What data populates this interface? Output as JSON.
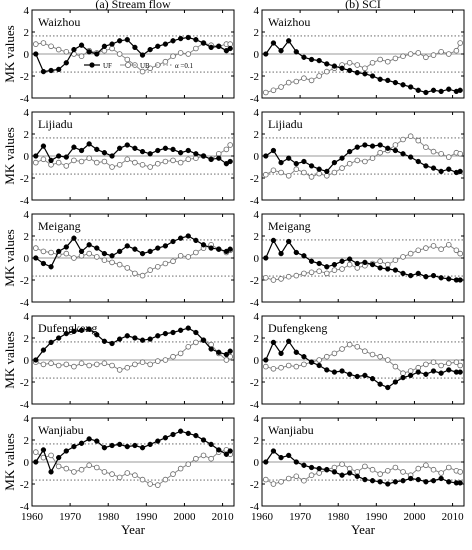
{
  "columns": [
    {
      "title": "(a) Stream flow"
    },
    {
      "title": "(b) SCI"
    }
  ],
  "stations": [
    "Waizhou",
    "Lijiadu",
    "Meigang",
    "Dufengkeng",
    "Wanjiabu"
  ],
  "ylabel": "MK values",
  "xlabel": "Year",
  "xticks": [
    1960,
    1970,
    1980,
    1990,
    2000,
    2010
  ],
  "yticks": [
    -4,
    -2,
    0,
    2,
    4
  ],
  "legend": {
    "uf": "UF",
    "ub": "UB",
    "alpha": "α =0.1"
  },
  "chart_data": {
    "type": "line",
    "xlim": [
      1960,
      2013
    ],
    "ylim": [
      -4,
      4
    ],
    "significance_lines": [
      -1.64,
      1.64
    ],
    "zero_line": 0,
    "x": [
      1961,
      1963,
      1965,
      1967,
      1969,
      1971,
      1973,
      1975,
      1977,
      1979,
      1981,
      1983,
      1985,
      1987,
      1989,
      1991,
      1993,
      1995,
      1997,
      1999,
      2001,
      2003,
      2005,
      2007,
      2009,
      2011,
      2012
    ],
    "panels": [
      {
        "station": "Waizhou",
        "variable": "Stream flow",
        "series": [
          {
            "name": "UF",
            "values": [
              0.0,
              -1.6,
              -1.5,
              -1.4,
              -0.8,
              0.4,
              0.8,
              0.2,
              0.0,
              0.7,
              0.9,
              1.2,
              1.3,
              0.6,
              -0.1,
              0.4,
              0.7,
              0.9,
              1.2,
              1.4,
              1.5,
              1.3,
              1.0,
              0.6,
              0.7,
              0.3,
              0.5
            ]
          },
          {
            "name": "UB",
            "values": [
              0.9,
              1.0,
              0.7,
              0.4,
              0.2,
              0.0,
              -0.2,
              0.3,
              0.1,
              0.3,
              0.5,
              0.0,
              -0.5,
              -1.0,
              -1.6,
              -1.3,
              -1.0,
              -0.7,
              -0.2,
              0.1,
              0.0,
              0.5,
              1.0,
              0.8,
              0.7,
              0.9,
              0.9
            ]
          }
        ]
      },
      {
        "station": "Waizhou",
        "variable": "SCI",
        "series": [
          {
            "name": "UF",
            "values": [
              0.0,
              1.0,
              0.3,
              1.2,
              0.2,
              -0.3,
              -0.5,
              -0.6,
              -0.9,
              -1.1,
              -1.3,
              -1.5,
              -1.7,
              -1.8,
              -2.0,
              -2.3,
              -2.4,
              -2.6,
              -2.8,
              -3.0,
              -3.3,
              -3.5,
              -3.3,
              -3.4,
              -3.2,
              -3.4,
              -3.3
            ]
          },
          {
            "name": "UB",
            "values": [
              -3.5,
              -3.3,
              -3.0,
              -2.6,
              -2.5,
              -2.2,
              -2.4,
              -2.0,
              -1.6,
              -1.3,
              -1.0,
              -0.8,
              -1.0,
              -1.3,
              -0.8,
              -0.5,
              -0.7,
              -0.4,
              -0.2,
              0.0,
              0.1,
              -0.3,
              -0.1,
              0.2,
              0.0,
              0.3,
              1.0
            ]
          }
        ]
      },
      {
        "station": "Lijiadu",
        "variable": "Stream flow",
        "series": [
          {
            "name": "UF",
            "values": [
              0.0,
              0.9,
              -0.4,
              0.0,
              -0.1,
              0.8,
              0.5,
              1.1,
              0.6,
              0.3,
              0.0,
              0.7,
              1.0,
              0.7,
              0.4,
              0.2,
              0.5,
              0.7,
              0.6,
              0.3,
              0.5,
              0.2,
              0.0,
              -0.3,
              -0.2,
              -0.7,
              -0.5
            ]
          },
          {
            "name": "UB",
            "values": [
              -0.6,
              -0.3,
              -0.8,
              -0.6,
              -0.9,
              -0.4,
              -0.5,
              -0.2,
              -0.6,
              -0.5,
              -1.0,
              -0.8,
              -0.3,
              -0.6,
              -0.8,
              -1.0,
              -0.7,
              -0.5,
              -0.4,
              -0.6,
              -0.3,
              -0.2,
              0.0,
              -0.3,
              0.2,
              0.6,
              1.0
            ]
          }
        ]
      },
      {
        "station": "Lijiadu",
        "variable": "SCI",
        "series": [
          {
            "name": "UF",
            "values": [
              0.0,
              0.5,
              -0.6,
              -0.2,
              -0.7,
              -0.5,
              -0.9,
              -1.2,
              -1.4,
              -0.6,
              -0.2,
              0.4,
              0.8,
              1.0,
              0.9,
              1.0,
              0.7,
              0.5,
              0.2,
              -0.1,
              -0.5,
              -0.9,
              -1.1,
              -1.4,
              -1.2,
              -1.5,
              -1.4
            ]
          },
          {
            "name": "UB",
            "values": [
              -1.7,
              -1.3,
              -1.5,
              -1.8,
              -1.2,
              -1.5,
              -1.9,
              -1.6,
              -1.8,
              -1.5,
              -1.1,
              -0.7,
              -0.4,
              -0.5,
              -0.2,
              0.3,
              0.5,
              1.0,
              1.5,
              1.8,
              1.4,
              0.8,
              0.4,
              0.2,
              -0.1,
              0.3,
              0.2
            ]
          }
        ]
      },
      {
        "station": "Meigang",
        "variable": "Stream flow",
        "series": [
          {
            "name": "UF",
            "values": [
              0.0,
              -0.5,
              -0.8,
              0.6,
              1.0,
              1.8,
              0.6,
              1.2,
              0.9,
              0.4,
              0.2,
              0.6,
              1.1,
              0.8,
              0.4,
              0.6,
              0.9,
              1.1,
              1.5,
              1.8,
              2.0,
              1.6,
              1.2,
              0.9,
              0.8,
              0.6,
              0.8
            ]
          },
          {
            "name": "UB",
            "values": [
              0.9,
              0.6,
              0.5,
              0.3,
              0.4,
              0.0,
              0.2,
              0.4,
              0.1,
              -0.2,
              -0.4,
              -0.6,
              -0.9,
              -1.4,
              -1.6,
              -1.1,
              -0.8,
              -0.5,
              -0.3,
              0.2,
              0.1,
              0.5,
              0.9,
              1.2,
              0.8,
              0.5,
              0.7
            ]
          }
        ]
      },
      {
        "station": "Meigang",
        "variable": "SCI",
        "series": [
          {
            "name": "UF",
            "values": [
              0.0,
              1.6,
              0.4,
              1.5,
              0.5,
              0.2,
              -0.3,
              -0.5,
              -0.8,
              -0.6,
              -0.3,
              -0.1,
              -0.5,
              -0.4,
              -0.6,
              -0.9,
              -1.0,
              -1.1,
              -1.4,
              -1.6,
              -1.4,
              -1.7,
              -1.6,
              -1.8,
              -1.9,
              -2.0,
              -2.0
            ]
          },
          {
            "name": "UB",
            "values": [
              -1.8,
              -2.0,
              -1.9,
              -1.7,
              -1.6,
              -1.4,
              -1.3,
              -1.2,
              -1.4,
              -1.1,
              -1.0,
              -0.6,
              -0.9,
              -0.7,
              -0.5,
              -0.3,
              -0.6,
              -0.2,
              0.1,
              0.4,
              0.7,
              0.9,
              1.1,
              0.8,
              1.2,
              0.7,
              0.4
            ]
          }
        ]
      },
      {
        "station": "Dufengkeng",
        "variable": "Stream flow",
        "series": [
          {
            "name": "UF",
            "values": [
              0.0,
              0.9,
              1.6,
              2.0,
              2.4,
              2.6,
              2.7,
              2.8,
              2.3,
              1.7,
              1.5,
              1.9,
              2.2,
              2.0,
              1.8,
              1.9,
              2.2,
              2.4,
              2.5,
              2.7,
              2.9,
              2.5,
              1.8,
              1.0,
              0.7,
              0.5,
              0.8
            ]
          },
          {
            "name": "UB",
            "values": [
              -0.2,
              -0.4,
              -0.3,
              -0.5,
              -0.4,
              -0.6,
              -0.3,
              -0.5,
              -0.4,
              -0.3,
              -0.5,
              -0.9,
              -0.7,
              -0.4,
              -0.2,
              -0.4,
              -0.1,
              0.0,
              0.3,
              0.6,
              1.2,
              1.6,
              1.8,
              1.4,
              0.6,
              0.0,
              0.3
            ]
          }
        ]
      },
      {
        "station": "Dufengkeng",
        "variable": "SCI",
        "series": [
          {
            "name": "UF",
            "values": [
              0.0,
              1.6,
              0.6,
              1.7,
              0.7,
              0.3,
              -0.2,
              -0.5,
              -0.9,
              -1.1,
              -1.0,
              -1.3,
              -1.5,
              -1.4,
              -1.7,
              -2.2,
              -2.5,
              -2.0,
              -1.6,
              -1.4,
              -1.1,
              -1.3,
              -1.0,
              -1.2,
              -0.9,
              -1.1,
              -1.1
            ]
          },
          {
            "name": "UB",
            "values": [
              -0.6,
              -0.8,
              -0.7,
              -0.5,
              -0.6,
              -0.4,
              -0.2,
              0.0,
              0.3,
              0.6,
              1.0,
              1.4,
              1.2,
              0.8,
              0.5,
              0.3,
              0.0,
              -0.6,
              -1.2,
              -1.0,
              -0.7,
              -0.4,
              -0.2,
              -0.5,
              -0.3,
              -0.2,
              -0.5
            ]
          }
        ]
      },
      {
        "station": "Wanjiabu",
        "variable": "Stream flow",
        "series": [
          {
            "name": "UF",
            "values": [
              0.0,
              1.1,
              -0.9,
              0.4,
              1.0,
              1.4,
              1.7,
              2.1,
              1.9,
              1.3,
              1.5,
              1.6,
              1.4,
              1.5,
              1.3,
              1.6,
              1.9,
              2.2,
              2.5,
              2.8,
              2.6,
              2.4,
              2.0,
              1.6,
              1.1,
              0.7,
              1.0
            ]
          },
          {
            "name": "UB",
            "values": [
              0.9,
              0.4,
              0.6,
              -0.4,
              -0.6,
              -0.9,
              -0.7,
              -0.3,
              -0.5,
              -0.9,
              -1.1,
              -1.4,
              -1.0,
              -1.2,
              -1.6,
              -2.0,
              -2.1,
              -1.6,
              -1.1,
              -0.6,
              -0.2,
              0.3,
              0.6,
              0.3,
              0.9,
              1.1,
              0.7
            ]
          }
        ]
      },
      {
        "station": "Wanjiabu",
        "variable": "SCI",
        "series": [
          {
            "name": "UF",
            "values": [
              0.0,
              1.0,
              0.4,
              0.6,
              0.0,
              -0.3,
              -0.5,
              -0.6,
              -0.7,
              -0.9,
              -1.2,
              -1.0,
              -1.3,
              -1.6,
              -1.7,
              -1.8,
              -2.0,
              -1.8,
              -1.7,
              -1.5,
              -1.6,
              -1.8,
              -1.7,
              -1.5,
              -1.8,
              -1.9,
              -1.9
            ]
          },
          {
            "name": "UB",
            "values": [
              -1.6,
              -2.0,
              -1.8,
              -1.5,
              -1.3,
              -1.7,
              -1.2,
              -1.0,
              -0.7,
              -0.5,
              -0.2,
              -0.6,
              -0.9,
              -0.4,
              -0.7,
              -1.1,
              -0.8,
              -0.5,
              -0.9,
              -1.2,
              -0.6,
              -0.3,
              -0.7,
              -1.0,
              -0.5,
              -0.8,
              -0.9
            ]
          }
        ]
      }
    ]
  }
}
